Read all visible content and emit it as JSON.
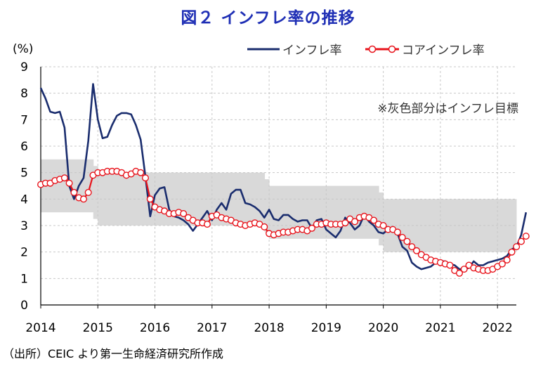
{
  "title": "図２ インフレ率の推移",
  "source": "（出所）CEIC より第一生命経済研究所作成",
  "colors": {
    "headline": "#1a2d6e",
    "core_line": "#e8131b",
    "core_marker_fill": "#ffffff",
    "target_band": "#d9d9d9",
    "title": "#1f2fb5"
  },
  "chart_data": {
    "type": "line",
    "title": "インフレ率の推移",
    "ylabel": "(%)",
    "ylim": [
      0,
      9
    ],
    "yticks": [
      "0",
      "1",
      "2",
      "3",
      "4",
      "5",
      "6",
      "7",
      "8",
      "9"
    ],
    "xlim": [
      2014.0,
      2022.33
    ],
    "xticks": [
      "2014",
      "2015",
      "2016",
      "2017",
      "2018",
      "2019",
      "2020",
      "2021",
      "2022"
    ],
    "annotation": "※灰色部分はインフレ目標",
    "legend": [
      "インフレ率",
      "コアインフレ率"
    ],
    "target_band": [
      {
        "x0": 2014.0,
        "x1": 2014.92,
        "low": 3.5,
        "high": 5.5
      },
      {
        "x0": 2014.92,
        "x1": 2015.0,
        "low": 3.25,
        "high": 5.25
      },
      {
        "x0": 2015.0,
        "x1": 2015.92,
        "low": 3.0,
        "high": 5.0
      },
      {
        "x0": 2015.92,
        "x1": 2017.92,
        "low": 3.0,
        "high": 5.0
      },
      {
        "x0": 2017.92,
        "x1": 2018.0,
        "low": 2.75,
        "high": 4.75
      },
      {
        "x0": 2018.0,
        "x1": 2019.92,
        "low": 2.5,
        "high": 4.5
      },
      {
        "x0": 2019.92,
        "x1": 2020.0,
        "low": 2.25,
        "high": 4.25
      },
      {
        "x0": 2020.0,
        "x1": 2022.33,
        "low": 2.0,
        "high": 4.0
      }
    ],
    "series": [
      {
        "name": "インフレ率",
        "start": 2014.0,
        "step": 0.08333,
        "values": [
          8.2,
          7.8,
          7.3,
          7.25,
          7.3,
          6.7,
          4.5,
          4.0,
          4.5,
          4.8,
          6.2,
          8.35,
          7.0,
          6.3,
          6.35,
          6.8,
          7.15,
          7.25,
          7.25,
          7.2,
          6.8,
          6.25,
          4.85,
          3.35,
          4.15,
          4.4,
          4.45,
          3.6,
          3.35,
          3.3,
          3.2,
          3.05,
          2.8,
          3.05,
          3.3,
          3.55,
          3.2,
          3.6,
          3.85,
          3.6,
          4.2,
          4.35,
          4.35,
          3.85,
          3.8,
          3.7,
          3.55,
          3.3,
          3.6,
          3.25,
          3.2,
          3.4,
          3.4,
          3.25,
          3.15,
          3.2,
          3.2,
          2.9,
          3.2,
          3.25,
          2.85,
          2.7,
          2.55,
          2.8,
          3.3,
          3.1,
          2.85,
          3.0,
          3.4,
          3.15,
          3.0,
          2.75,
          2.7,
          2.85,
          2.95,
          2.7,
          2.2,
          2.05,
          1.6,
          1.45,
          1.35,
          1.4,
          1.45,
          1.6,
          1.65,
          1.65,
          1.55,
          1.5,
          1.35,
          1.35,
          1.4,
          1.65,
          1.5,
          1.5,
          1.6,
          1.65,
          1.7,
          1.75,
          1.85,
          2.1,
          2.2,
          2.65,
          3.5
        ]
      },
      {
        "name": "コアインフレ率",
        "start": 2014.0,
        "step": 0.08333,
        "values": [
          4.55,
          4.6,
          4.6,
          4.7,
          4.75,
          4.8,
          4.6,
          4.25,
          4.05,
          4.0,
          4.25,
          4.9,
          5.0,
          5.0,
          5.05,
          5.05,
          5.05,
          5.0,
          4.9,
          4.95,
          5.05,
          5.0,
          4.8,
          4.0,
          3.7,
          3.6,
          3.55,
          3.45,
          3.45,
          3.5,
          3.45,
          3.3,
          3.2,
          3.1,
          3.1,
          3.05,
          3.35,
          3.4,
          3.3,
          3.25,
          3.2,
          3.1,
          3.05,
          3.0,
          3.05,
          3.1,
          3.05,
          2.95,
          2.7,
          2.65,
          2.7,
          2.75,
          2.75,
          2.8,
          2.85,
          2.85,
          2.8,
          2.9,
          3.05,
          3.05,
          3.1,
          3.05,
          3.05,
          3.05,
          3.1,
          3.25,
          3.15,
          3.3,
          3.35,
          3.3,
          3.2,
          3.05,
          3.0,
          2.85,
          2.85,
          2.75,
          2.55,
          2.4,
          2.2,
          2.05,
          1.9,
          1.8,
          1.7,
          1.65,
          1.6,
          1.55,
          1.5,
          1.3,
          1.2,
          1.35,
          1.5,
          1.4,
          1.35,
          1.3,
          1.3,
          1.35,
          1.45,
          1.55,
          1.7,
          2.0,
          2.2,
          2.4,
          2.6
        ]
      }
    ]
  }
}
